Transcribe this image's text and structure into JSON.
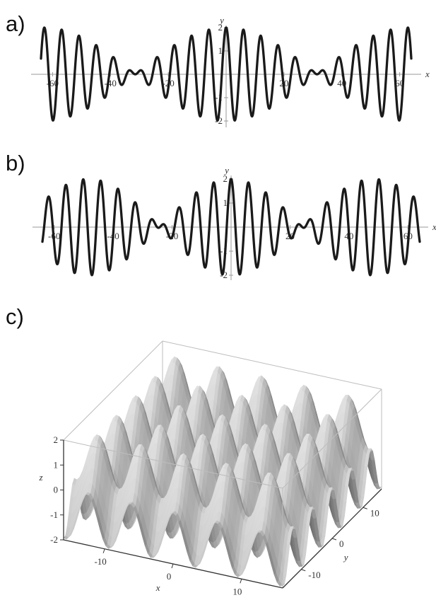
{
  "panels": {
    "a": {
      "letter": "a)"
    },
    "b": {
      "letter": "b)"
    },
    "c": {
      "letter": "c)"
    }
  },
  "colors": {
    "curve": "#1a1a1a",
    "axis": "#9a9a9a",
    "surface_light": "#e2e2e2",
    "surface_dark": "#555555",
    "box": "#bdbdbd"
  },
  "chart_data": [
    {
      "id": "a",
      "type": "line",
      "title": "",
      "xlabel": "x",
      "ylabel": "y",
      "xlim": [
        -64,
        64
      ],
      "ylim": [
        -2,
        2
      ],
      "xticks": [
        -60,
        -40,
        -20,
        20,
        40,
        60
      ],
      "xtick_labels": [
        "-60",
        "-40",
        "-20",
        "20",
        "40",
        "60"
      ],
      "yticks": [
        -2,
        -1,
        1,
        2
      ],
      "ytick_labels": [
        "-2",
        "-1",
        "1",
        "2"
      ],
      "series": [
        {
          "function": "cos(x) + cos(1.1*x)",
          "x_range": [
            -64,
            64
          ],
          "y_min": -2,
          "y_max": 2
        }
      ],
      "grid": false
    },
    {
      "id": "b",
      "type": "line",
      "title": "",
      "xlabel": "x",
      "ylabel": "y",
      "xlim": [
        -64,
        64
      ],
      "ylim": [
        -2,
        2
      ],
      "xticks": [
        -60,
        -40,
        -20,
        20,
        40,
        60
      ],
      "xtick_labels": [
        "-60",
        "-40",
        "-20",
        "20",
        "40",
        "60"
      ],
      "yticks": [
        -2,
        -1,
        1,
        2
      ],
      "ytick_labels": [
        "-2",
        "-1",
        "1",
        "2"
      ],
      "series": [
        {
          "function": "cos(x) + cos(1.13*x)",
          "x_range": [
            -64,
            64
          ],
          "y_min": -2,
          "y_max": 2
        }
      ],
      "grid": false
    },
    {
      "id": "c",
      "type": "surface3d",
      "title": "",
      "xlabel": "x",
      "ylabel": "y",
      "zlabel": "z",
      "xlim": [
        -16,
        16
      ],
      "ylim": [
        -16,
        16
      ],
      "zlim": [
        -2,
        2
      ],
      "xticks": [
        -10,
        0,
        10
      ],
      "xtick_labels": [
        "-10",
        "0",
        "10"
      ],
      "yticks": [
        -10,
        0,
        10
      ],
      "ytick_labels": [
        "-10",
        "0",
        "10"
      ],
      "zticks": [
        -2,
        -1,
        0,
        1,
        2
      ],
      "ztick_labels": [
        "-2",
        "-1",
        "0",
        "1",
        "2"
      ],
      "surface": {
        "function": "cos(x) + cos(y)",
        "z_min": -2,
        "z_max": 2
      },
      "grid": false
    }
  ]
}
